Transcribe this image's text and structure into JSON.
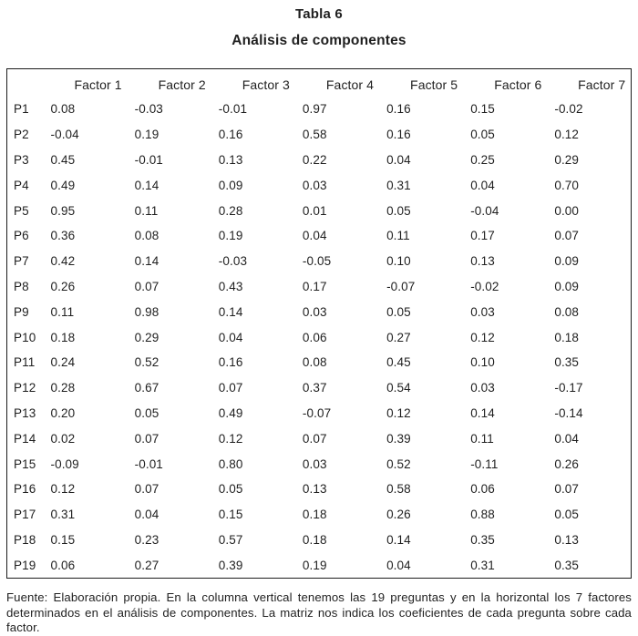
{
  "title": "Tabla 6",
  "subtitle": "Análisis de componentes",
  "text_color": "#1f1f1f",
  "border_color": "#1c1c1c",
  "chart_data": {
    "type": "table",
    "title": "Análisis de componentes",
    "columns": [
      "Factor 1",
      "Factor 2",
      "Factor 3",
      "Factor 4",
      "Factor 5",
      "Factor 6",
      "Factor 7"
    ],
    "rows": [
      {
        "label": "P1",
        "values": [
          "0.08",
          "-0.03",
          "-0.01",
          "0.97",
          "0.16",
          "0.15",
          "-0.02"
        ]
      },
      {
        "label": "P2",
        "values": [
          "-0.04",
          "0.19",
          "0.16",
          "0.58",
          "0.16",
          "0.05",
          "0.12"
        ]
      },
      {
        "label": "P3",
        "values": [
          "0.45",
          "-0.01",
          "0.13",
          "0.22",
          "0.04",
          "0.25",
          "0.29"
        ]
      },
      {
        "label": "P4",
        "values": [
          "0.49",
          "0.14",
          "0.09",
          "0.03",
          "0.31",
          "0.04",
          "0.70"
        ]
      },
      {
        "label": "P5",
        "values": [
          "0.95",
          "0.11",
          "0.28",
          "0.01",
          "0.05",
          "-0.04",
          "0.00"
        ]
      },
      {
        "label": "P6",
        "values": [
          "0.36",
          "0.08",
          "0.19",
          "0.04",
          "0.11",
          "0.17",
          "0.07"
        ]
      },
      {
        "label": "P7",
        "values": [
          "0.42",
          "0.14",
          "-0.03",
          "-0.05",
          "0.10",
          "0.13",
          "0.09"
        ]
      },
      {
        "label": "P8",
        "values": [
          "0.26",
          "0.07",
          "0.43",
          "0.17",
          "-0.07",
          "-0.02",
          "0.09"
        ]
      },
      {
        "label": "P9",
        "values": [
          "0.11",
          "0.98",
          "0.14",
          "0.03",
          "0.05",
          "0.03",
          "0.08"
        ]
      },
      {
        "label": "P10",
        "values": [
          "0.18",
          "0.29",
          "0.04",
          "0.06",
          "0.27",
          "0.12",
          "0.18"
        ]
      },
      {
        "label": "P11",
        "values": [
          "0.24",
          "0.52",
          "0.16",
          "0.08",
          "0.45",
          "0.10",
          "0.35"
        ]
      },
      {
        "label": "P12",
        "values": [
          "0.28",
          "0.67",
          "0.07",
          "0.37",
          "0.54",
          "0.03",
          "-0.17"
        ]
      },
      {
        "label": "P13",
        "values": [
          "0.20",
          "0.05",
          "0.49",
          "-0.07",
          "0.12",
          "0.14",
          "-0.14"
        ]
      },
      {
        "label": "P14",
        "values": [
          "0.02",
          "0.07",
          "0.12",
          "0.07",
          "0.39",
          "0.11",
          "0.04"
        ]
      },
      {
        "label": "P15",
        "values": [
          "-0.09",
          "-0.01",
          "0.80",
          "0.03",
          "0.52",
          "-0.11",
          "0.26"
        ]
      },
      {
        "label": "P16",
        "values": [
          "0.12",
          "0.07",
          "0.05",
          "0.13",
          "0.58",
          "0.06",
          "0.07"
        ]
      },
      {
        "label": "P17",
        "values": [
          "0.31",
          "0.04",
          "0.15",
          "0.18",
          "0.26",
          "0.88",
          "0.05"
        ]
      },
      {
        "label": "P18",
        "values": [
          "0.15",
          "0.23",
          "0.57",
          "0.18",
          "0.14",
          "0.35",
          "0.13"
        ]
      },
      {
        "label": "P19",
        "values": [
          "0.06",
          "0.27",
          "0.39",
          "0.19",
          "0.04",
          "0.31",
          "0.35"
        ]
      }
    ]
  },
  "footnote": "Fuente: Elaboración propia. En la columna vertical tenemos las 19 preguntas y en la horizontal los 7 factores determinados en el análisis de componentes. La matriz nos indica los coeficientes de cada pregunta sobre cada factor."
}
